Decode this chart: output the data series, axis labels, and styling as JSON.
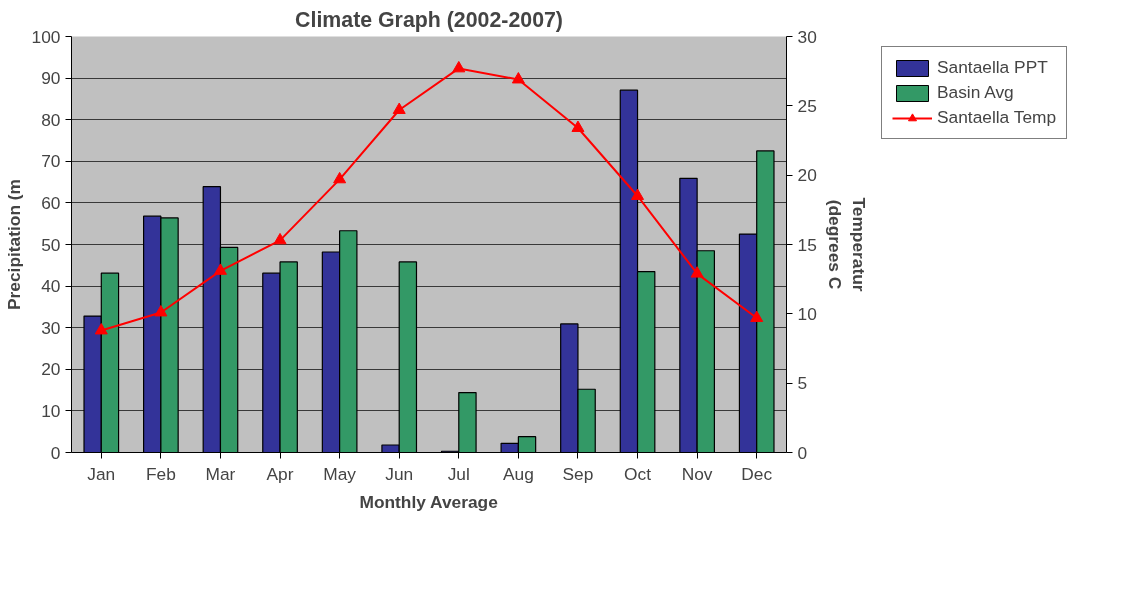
{
  "chart_data": {
    "type": "bar",
    "title": "Climate Graph (2002-2007)",
    "xlabel": "Monthly Average",
    "ylabel": "Precipitation (m",
    "y2label": "Temperatur\n(degrees C",
    "categories": [
      "Jan",
      "Feb",
      "Mar",
      "Apr",
      "May",
      "Jun",
      "Jul",
      "Aug",
      "Sep",
      "Oct",
      "Nov",
      "Dec"
    ],
    "series": [
      {
        "name": "Santaella PPT",
        "color": "#333399",
        "values": [
          32.8,
          56.8,
          63.9,
          43.1,
          48.2,
          1.8,
          0.3,
          2.2,
          30.9,
          87.1,
          65.9,
          52.5
        ]
      },
      {
        "name": "Basin Avg",
        "color": "#339966",
        "values": [
          43.1,
          56.4,
          49.3,
          45.8,
          53.3,
          45.8,
          14.4,
          3.8,
          15.2,
          43.5,
          48.5,
          72.5
        ]
      },
      {
        "name": "Santaella Temp",
        "color": "#ff0000",
        "type": "line",
        "axis": "y2",
        "marker": "triangle",
        "values": [
          8.8,
          10.1,
          13.1,
          15.3,
          19.7,
          24.7,
          27.7,
          26.9,
          23.4,
          18.5,
          12.9,
          9.7
        ]
      }
    ],
    "ylim": [
      0,
      100
    ],
    "yticks": [
      0,
      10,
      20,
      30,
      40,
      50,
      60,
      70,
      80,
      90,
      100
    ],
    "y2lim": [
      0,
      30
    ],
    "y2ticks": [
      0,
      5,
      10,
      15,
      20,
      25,
      30
    ],
    "grid": "y",
    "legend": "top right"
  }
}
